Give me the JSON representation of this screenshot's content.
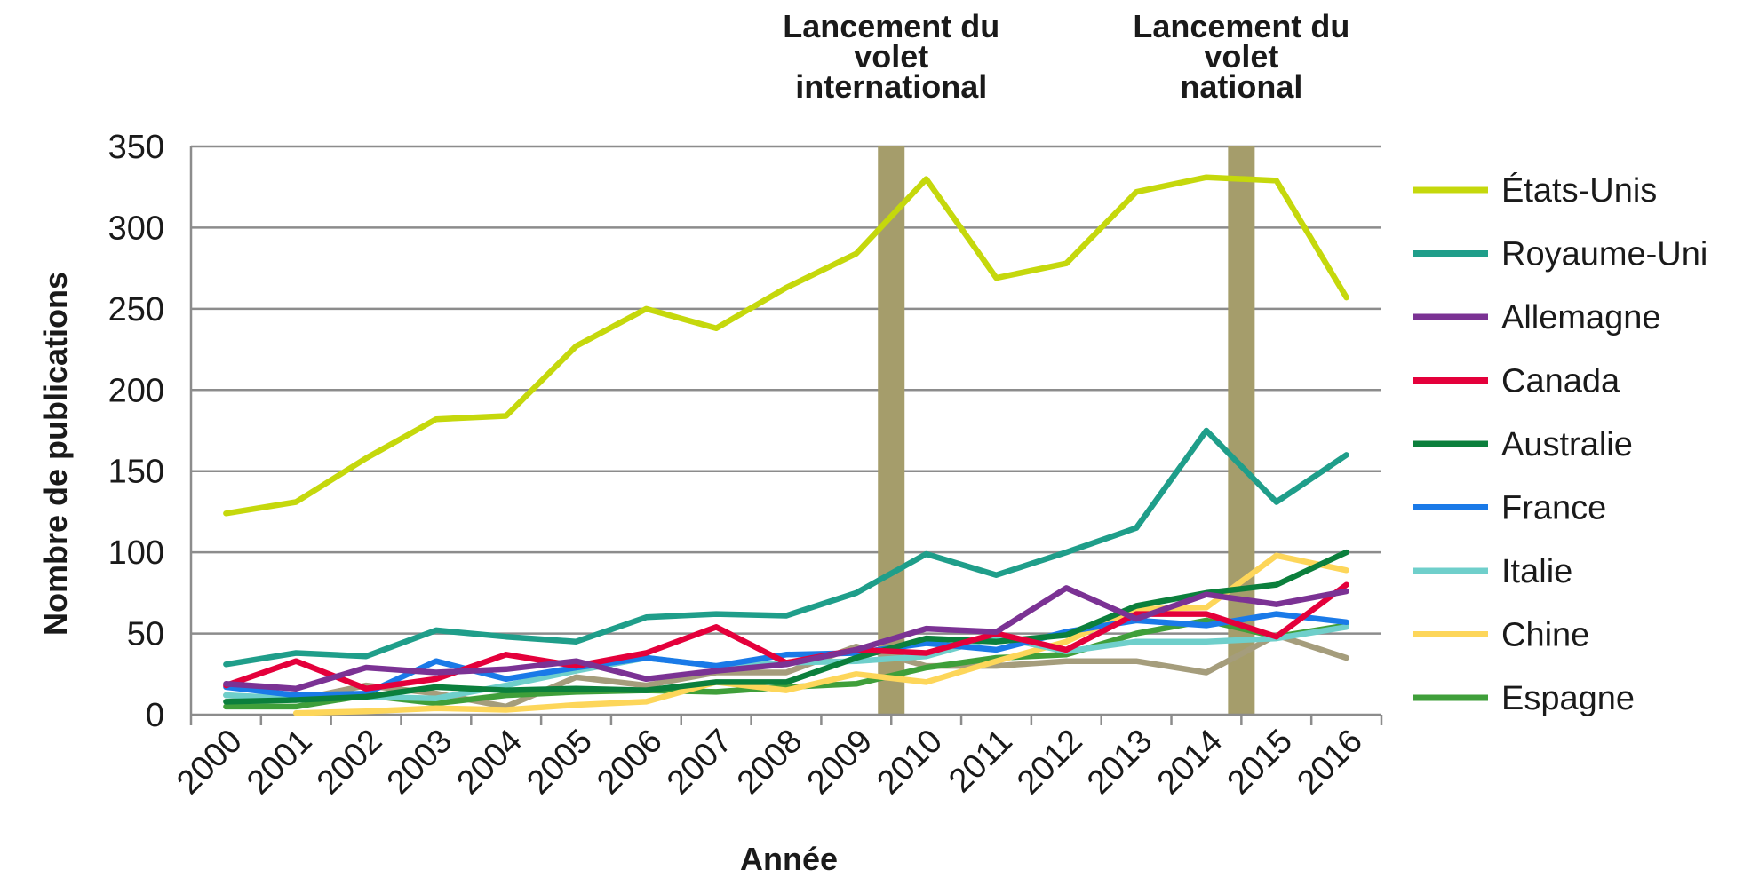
{
  "chart_data": {
    "type": "line",
    "xlabel": "Année",
    "ylabel": "Nombre de publications",
    "ylim": [
      0,
      350
    ],
    "yticks": [
      "0",
      "50",
      "100",
      "150",
      "200",
      "250",
      "300",
      "350"
    ],
    "categories": [
      "2000",
      "2001",
      "2002",
      "2003",
      "2004",
      "2005",
      "2006",
      "2007",
      "2008",
      "2009",
      "2010",
      "2011",
      "2012",
      "2013",
      "2014",
      "2015",
      "2016"
    ],
    "grid": "horizontal",
    "legend_position": "right",
    "markers": [
      {
        "year": "2009",
        "lines": [
          "Lancement du",
          "volet",
          "international"
        ],
        "color": "#a59d6b"
      },
      {
        "year": "2014",
        "lines": [
          "Lancement du",
          "volet",
          "national"
        ],
        "color": "#a59d6b"
      }
    ],
    "series": [
      {
        "name": "États-Unis",
        "color": "#c5d80c",
        "values": [
          124,
          131,
          158,
          182,
          184,
          227,
          250,
          238,
          263,
          284,
          330,
          269,
          278,
          322,
          331,
          329,
          257
        ]
      },
      {
        "name": "Royaume-Uni",
        "color": "#1f9e8a",
        "values": [
          31,
          38,
          36,
          52,
          48,
          45,
          60,
          62,
          61,
          75,
          99,
          86,
          100,
          115,
          175,
          131,
          160
        ]
      },
      {
        "name": "Allemagne",
        "color": "#7b3294",
        "values": [
          19,
          16,
          29,
          26,
          28,
          33,
          22,
          27,
          31,
          40,
          53,
          51,
          78,
          59,
          74,
          68,
          76
        ]
      },
      {
        "name": "Canada",
        "color": "#e4003b",
        "values": [
          18,
          33,
          16,
          22,
          37,
          30,
          38,
          54,
          32,
          40,
          38,
          50,
          40,
          62,
          62,
          48,
          80
        ]
      },
      {
        "name": "Australie",
        "color": "#0b7f3c",
        "values": [
          8,
          9,
          11,
          17,
          15,
          16,
          15,
          20,
          20,
          35,
          47,
          45,
          49,
          67,
          75,
          80,
          100
        ]
      },
      {
        "name": "France",
        "color": "#1a7ae8",
        "values": [
          17,
          12,
          13,
          33,
          22,
          29,
          35,
          30,
          37,
          38,
          44,
          40,
          51,
          58,
          55,
          62,
          57
        ]
      },
      {
        "name": "Italie",
        "color": "#6fcfcb",
        "values": [
          12,
          10,
          11,
          10,
          18,
          27,
          35,
          30,
          32,
          33,
          36,
          48,
          39,
          45,
          45,
          47,
          54
        ]
      },
      {
        "name": "Chine",
        "color": "#fdd65a",
        "values": [
          null,
          1,
          2,
          4,
          3,
          6,
          8,
          20,
          15,
          25,
          20,
          33,
          45,
          65,
          66,
          98,
          89
        ]
      },
      {
        "name": "Espagne",
        "color": "#3f9f3a",
        "values": [
          5,
          5,
          12,
          7,
          12,
          14,
          15,
          14,
          17,
          19,
          29,
          35,
          37,
          50,
          58,
          48,
          55
        ]
      },
      {
        "name": "",
        "color": "#a59d7c",
        "values": [
          12,
          9,
          18,
          13,
          5,
          23,
          18,
          26,
          26,
          42,
          30,
          30,
          33,
          33,
          26,
          49,
          35
        ]
      }
    ]
  }
}
